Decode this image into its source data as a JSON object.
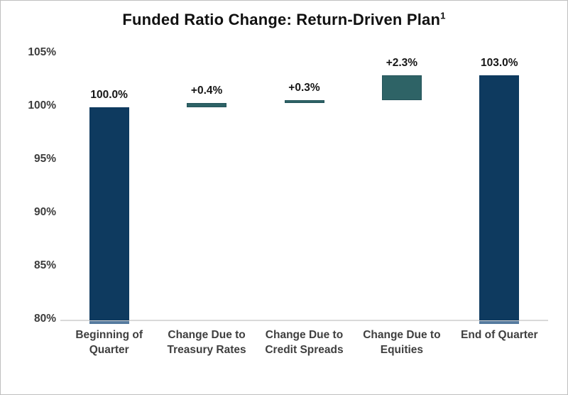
{
  "header": {
    "title": "Funded Ratio Change: Return-Driven Plan",
    "superscript": "1"
  },
  "chart_data": {
    "type": "bar",
    "subtype": "waterfall",
    "title": "Funded Ratio Change: Return-Driven Plan¹",
    "xlabel": "",
    "ylabel": "",
    "ylim": [
      80,
      105
    ],
    "grid": false,
    "legend": "none",
    "axis_line_color": "#d9d9d9",
    "overhang_color": "#557a9e",
    "colors": {
      "total": "#0e3a5f",
      "delta": "#2e6366",
      "delta_border": "#24545a"
    },
    "categories": [
      "Beginning of\nQuarter",
      "Change Due to\nTreasury Rates",
      "Change Due to\nCredit Spreads",
      "Change Due to\nEquities",
      "End of Quarter"
    ],
    "yticks": [
      {
        "value": 105,
        "label": "105%"
      },
      {
        "value": 100,
        "label": "100%"
      },
      {
        "value": 95,
        "label": "95%"
      },
      {
        "value": 90,
        "label": "90%"
      },
      {
        "value": 85,
        "label": "85%"
      },
      {
        "value": 80,
        "label": "80%"
      }
    ],
    "bars": [
      {
        "category": "Beginning of\nQuarter",
        "value_label": "100.0%",
        "start": 80,
        "end": 100,
        "kind": "total",
        "overhang": true
      },
      {
        "category": "Change Due to\nTreasury Rates",
        "value_label": "+0.4%",
        "start": 100,
        "end": 100.4,
        "kind": "delta",
        "overhang": false
      },
      {
        "category": "Change Due to\nCredit Spreads",
        "value_label": "+0.3%",
        "start": 100.4,
        "end": 100.7,
        "kind": "delta",
        "overhang": false
      },
      {
        "category": "Change Due to\nEquities",
        "value_label": "+2.3%",
        "start": 100.7,
        "end": 103.0,
        "kind": "delta",
        "overhang": false
      },
      {
        "category": "End of Quarter",
        "value_label": "103.0%",
        "start": 80,
        "end": 103.0,
        "kind": "total",
        "overhang": true
      }
    ]
  }
}
